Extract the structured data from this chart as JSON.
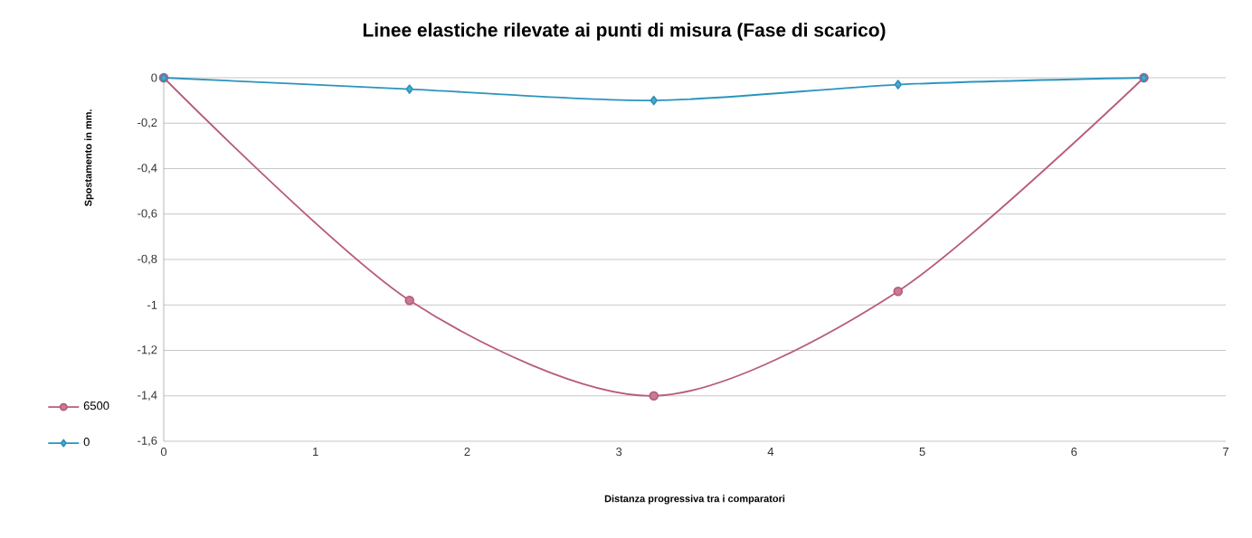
{
  "chart_data": {
    "type": "line",
    "title": "Linee elastiche rilevate ai punti di misura (Fase di scarico)",
    "xlabel": "Distanza progressiva tra i comparatori",
    "ylabel": "Spostamento in mm.",
    "series": [
      {
        "name": "6500",
        "color": "#b85c78",
        "marker": "circle",
        "x": [
          0,
          1.62,
          3.23,
          4.84,
          6.46
        ],
        "values": [
          0,
          -0.98,
          -1.4,
          -0.94,
          0
        ]
      },
      {
        "name": "0",
        "color": "#2b94be",
        "marker": "diamond",
        "x": [
          0,
          1.62,
          3.23,
          4.84,
          6.46
        ],
        "values": [
          0,
          -0.05,
          -0.1,
          -0.03,
          0
        ]
      }
    ],
    "xlim": [
      0,
      7
    ],
    "xticks": [
      0,
      1,
      2,
      3,
      4,
      5,
      6,
      7
    ],
    "ylim": [
      -1.6,
      0
    ],
    "yticks": [
      {
        "value": -1.6,
        "label": "-1,6"
      },
      {
        "value": -1.4,
        "label": "-1,4"
      },
      {
        "value": -1.2,
        "label": "-1,2"
      },
      {
        "value": -1,
        "label": "-1"
      },
      {
        "value": -0.8,
        "label": "-0,8"
      },
      {
        "value": -0.6,
        "label": "-0,6"
      },
      {
        "value": -0.4,
        "label": "-0,4"
      },
      {
        "value": -0.2,
        "label": "-0,2"
      },
      {
        "value": 0,
        "label": "0"
      }
    ],
    "grid": "y",
    "legend": "left"
  }
}
